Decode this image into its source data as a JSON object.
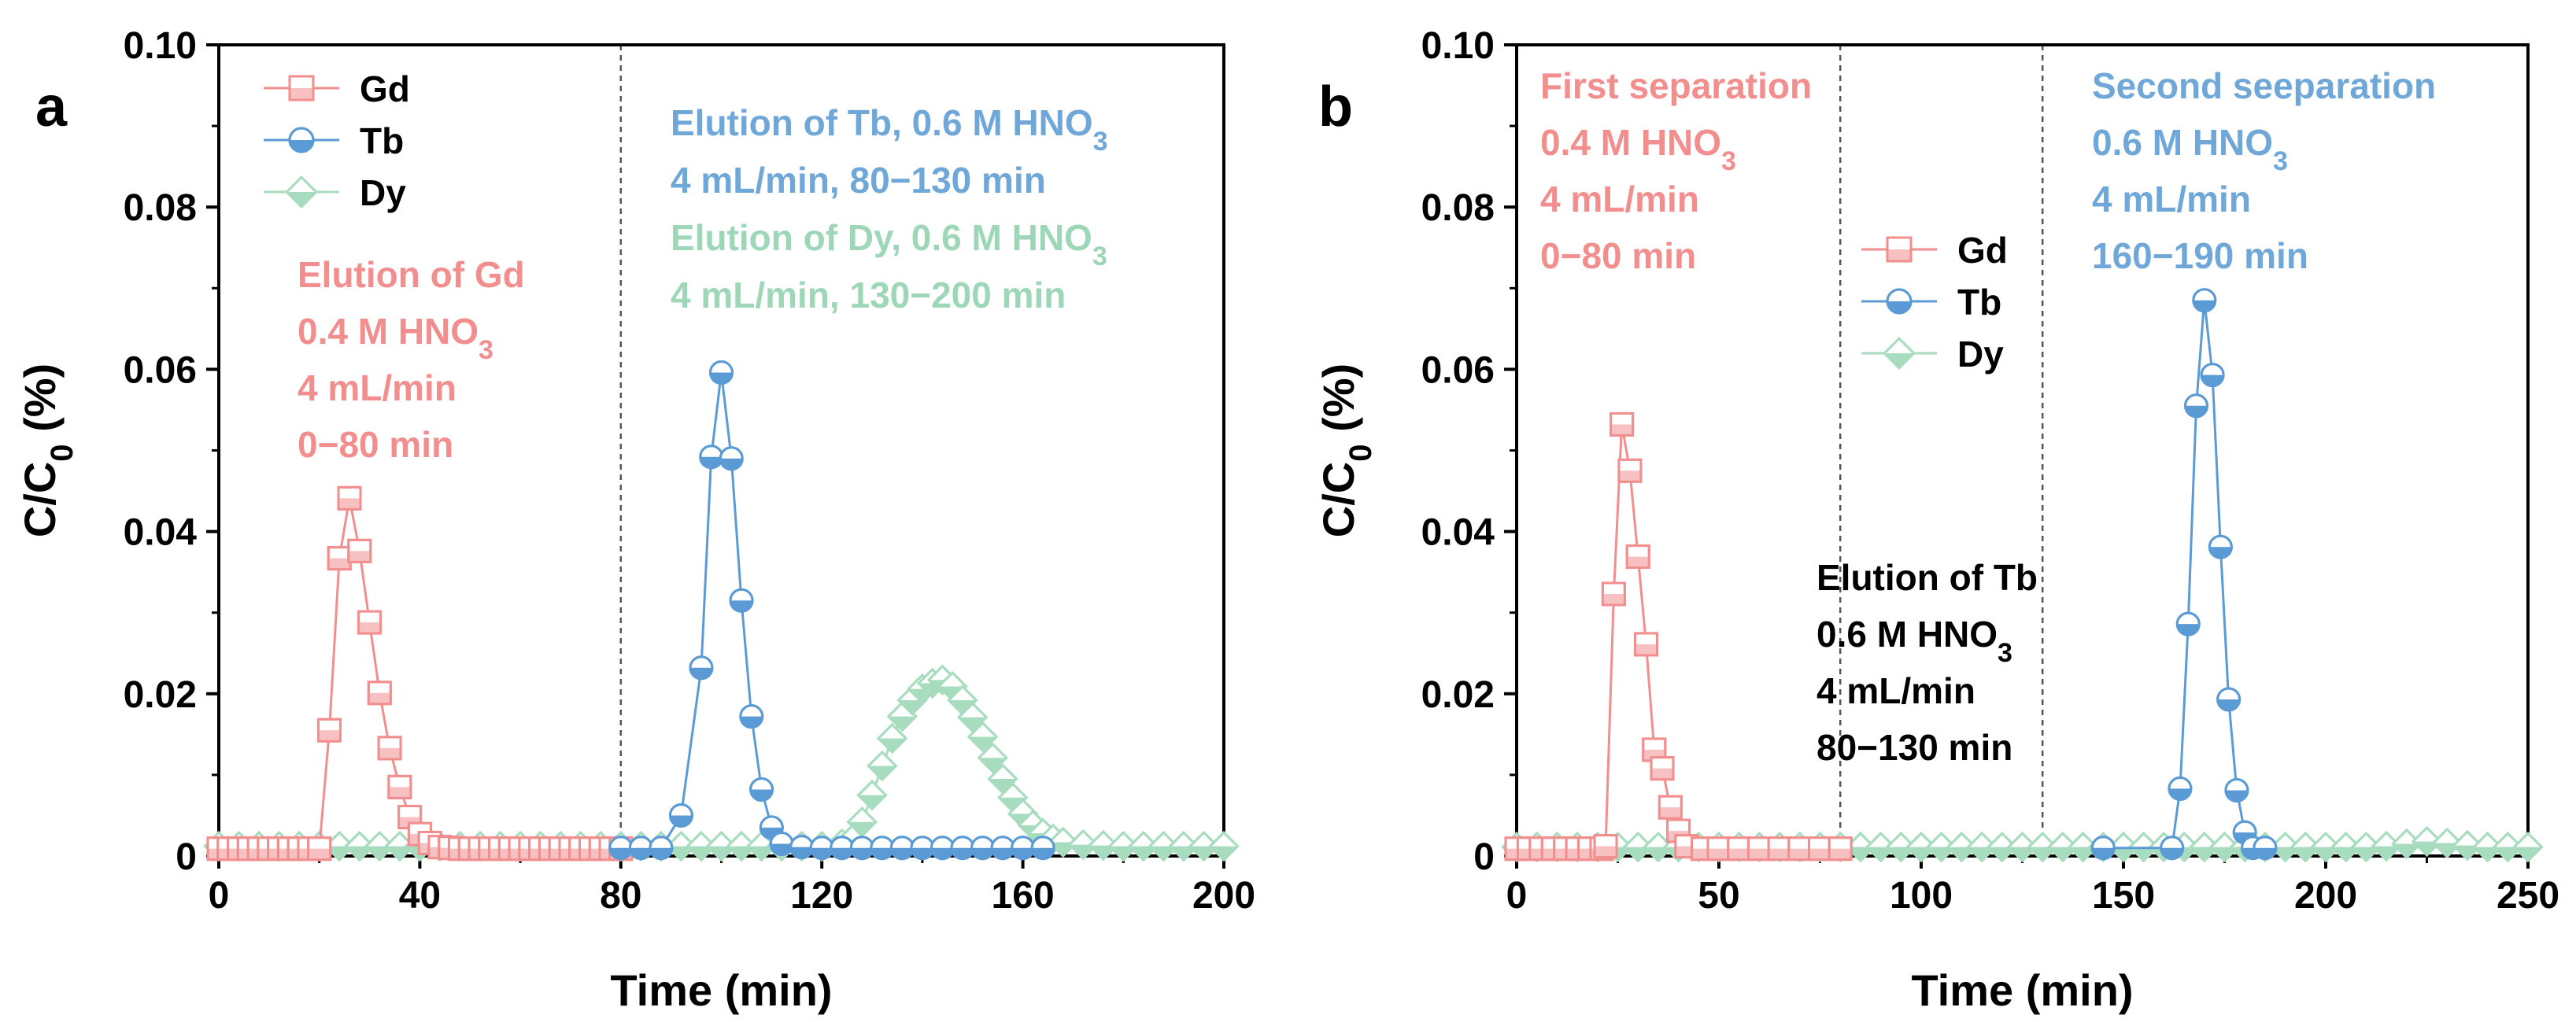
{
  "colors": {
    "Gd": "#f28e8e",
    "Tb": "#5b9bd5",
    "Dy": "#a8dcbf",
    "anno_gd": "#f28e8e",
    "anno_tb": "#6fa8d8",
    "anno_dy": "#9ed6b8",
    "anno_black": "#000000"
  },
  "chart_data": [
    {
      "type": "line",
      "panel": "a",
      "xlabel": "Time (min)",
      "ylabel": {
        "main": "C/C",
        "sub": "0",
        "tail": " (%)"
      },
      "xlim": [
        0,
        200
      ],
      "ylim": [
        0,
        0.1
      ],
      "xticks": [
        "0",
        "40",
        "80",
        "120",
        "160",
        "200"
      ],
      "yticks": [
        "0",
        "0.02",
        "0.04",
        "0.06",
        "0.08",
        "0.10"
      ],
      "vlines": [
        80
      ],
      "legend": {
        "position": "top-left",
        "entries": [
          "Gd",
          "Tb",
          "Dy"
        ]
      },
      "series": [
        {
          "name": "Gd",
          "marker": "square",
          "x": [
            0,
            2,
            4,
            6,
            8,
            10,
            12,
            14,
            16,
            18,
            20,
            22,
            24,
            26,
            28,
            30,
            32,
            34,
            36,
            38,
            40,
            42,
            44,
            46,
            48,
            50,
            52,
            54,
            56,
            58,
            60,
            62,
            64,
            66,
            68,
            70,
            72,
            74,
            76,
            78,
            80
          ],
          "y": [
            0.0009,
            0.0009,
            0.0009,
            0.0009,
            0.0009,
            0.0009,
            0.0009,
            0.0009,
            0.0009,
            0.0009,
            0.0009,
            0.0155,
            0.0367,
            0.0441,
            0.0376,
            0.0288,
            0.0201,
            0.0133,
            0.0085,
            0.0048,
            0.0027,
            0.0016,
            0.0011,
            0.001,
            0.0009,
            0.0009,
            0.0009,
            0.0009,
            0.0009,
            0.0009,
            0.0009,
            0.0009,
            0.0009,
            0.0009,
            0.0009,
            0.0009,
            0.0009,
            0.0009,
            0.0009,
            0.0009,
            0.0009
          ]
        },
        {
          "name": "Tb",
          "marker": "circle",
          "x": [
            80,
            84,
            88,
            92,
            96,
            98,
            100,
            102,
            104,
            106,
            108,
            110,
            112,
            116,
            120,
            124,
            128,
            132,
            136,
            140,
            144,
            148,
            152,
            156,
            160,
            164
          ],
          "y": [
            0.001,
            0.001,
            0.001,
            0.005,
            0.0232,
            0.0492,
            0.0596,
            0.049,
            0.0315,
            0.0172,
            0.0082,
            0.0035,
            0.0015,
            0.0011,
            0.001,
            0.001,
            0.001,
            0.001,
            0.001,
            0.001,
            0.001,
            0.001,
            0.001,
            0.001,
            0.001,
            0.001
          ]
        },
        {
          "name": "Dy",
          "marker": "diamond",
          "x": [
            0,
            4,
            8,
            12,
            16,
            20,
            24,
            28,
            32,
            36,
            40,
            44,
            48,
            52,
            56,
            60,
            64,
            68,
            72,
            76,
            80,
            84,
            88,
            92,
            96,
            100,
            104,
            108,
            112,
            116,
            120,
            124,
            126,
            128,
            130,
            132,
            134,
            136,
            138,
            140,
            142,
            144,
            146,
            148,
            150,
            152,
            154,
            156,
            158,
            160,
            162,
            164,
            166,
            168,
            172,
            176,
            180,
            184,
            188,
            192,
            196,
            200
          ],
          "y": [
            0.0012,
            0.0012,
            0.0012,
            0.0012,
            0.0012,
            0.0012,
            0.0012,
            0.0012,
            0.0012,
            0.0012,
            0.0012,
            0.0012,
            0.0012,
            0.0012,
            0.0012,
            0.0012,
            0.0012,
            0.0012,
            0.0012,
            0.0012,
            0.0012,
            0.0012,
            0.0012,
            0.0012,
            0.0012,
            0.0012,
            0.0012,
            0.0012,
            0.0012,
            0.0012,
            0.0012,
            0.0015,
            0.002,
            0.0042,
            0.0075,
            0.0111,
            0.0145,
            0.0172,
            0.0192,
            0.0206,
            0.0213,
            0.0217,
            0.0209,
            0.0192,
            0.0171,
            0.0147,
            0.0121,
            0.0095,
            0.0072,
            0.0052,
            0.0038,
            0.0028,
            0.0021,
            0.0017,
            0.0014,
            0.0013,
            0.0012,
            0.0012,
            0.0012,
            0.0012,
            0.0012,
            0.0012
          ]
        }
      ],
      "annotations": [
        {
          "color": "anno_gd",
          "lines": [
            [
              {
                "t": "Elution of Gd"
              }
            ],
            [
              {
                "t": "0.4 M HNO"
              },
              {
                "t": "3",
                "sub": true
              }
            ],
            [
              {
                "t": "4 mL/min"
              }
            ],
            [
              {
                "t": "0−80 min"
              }
            ]
          ]
        },
        {
          "color": "anno_tb",
          "lines": [
            [
              {
                "t": "Elution of Tb, 0.6 M HNO"
              },
              {
                "t": "3",
                "sub": true
              }
            ],
            [
              {
                "t": "4 mL/min, 80−130 min"
              }
            ]
          ]
        },
        {
          "color": "anno_dy",
          "lines": [
            [
              {
                "t": "Elution of Dy, 0.6 M HNO"
              },
              {
                "t": "3",
                "sub": true
              }
            ],
            [
              {
                "t": "4 mL/min, 130−200 min"
              }
            ]
          ]
        }
      ]
    },
    {
      "type": "line",
      "panel": "b",
      "xlabel": "Time (min)",
      "ylabel": {
        "main": "C/C",
        "sub": "0",
        "tail": " (%)"
      },
      "xlim": [
        0,
        250
      ],
      "ylim": [
        0,
        0.1
      ],
      "xticks": [
        "0",
        "50",
        "100",
        "150",
        "200",
        "250"
      ],
      "yticks": [
        "0",
        "0.02",
        "0.04",
        "0.06",
        "0.08",
        "0.10"
      ],
      "vlines": [
        80,
        130
      ],
      "legend": {
        "position": "top-center",
        "entries": [
          "Gd",
          "Tb",
          "Dy"
        ]
      },
      "series": [
        {
          "name": "Gd",
          "marker": "square",
          "x": [
            0,
            3,
            6,
            9,
            12,
            15,
            18,
            21,
            22,
            24,
            26,
            28,
            30,
            32,
            34,
            36,
            38,
            40,
            42,
            46,
            50,
            55,
            60,
            65,
            70,
            75,
            80
          ],
          "y": [
            0.0009,
            0.0009,
            0.0009,
            0.0009,
            0.0009,
            0.0009,
            0.0009,
            0.0009,
            0.0012,
            0.0323,
            0.0532,
            0.0475,
            0.0369,
            0.0261,
            0.0131,
            0.0108,
            0.006,
            0.0031,
            0.0012,
            0.0009,
            0.0009,
            0.0009,
            0.0009,
            0.0009,
            0.0009,
            0.0009,
            0.0009
          ]
        },
        {
          "name": "Tb",
          "marker": "circle",
          "x": [
            145,
            162,
            164,
            166,
            168,
            170,
            172,
            174,
            176,
            178,
            180,
            182,
            185
          ],
          "y": [
            0.001,
            0.001,
            0.0083,
            0.0286,
            0.0555,
            0.0685,
            0.0593,
            0.0381,
            0.0193,
            0.0081,
            0.0029,
            0.001,
            0.001
          ]
        },
        {
          "name": "Dy",
          "marker": "diamond",
          "x": [
            0,
            5,
            10,
            15,
            20,
            25,
            30,
            35,
            40,
            45,
            50,
            55,
            60,
            65,
            70,
            75,
            80,
            85,
            90,
            95,
            100,
            105,
            110,
            115,
            120,
            125,
            130,
            135,
            140,
            145,
            150,
            155,
            160,
            165,
            170,
            175,
            180,
            185,
            190,
            195,
            200,
            205,
            210,
            215,
            220,
            225,
            230,
            235,
            240,
            245,
            250
          ],
          "y": [
            0.0011,
            0.0011,
            0.0011,
            0.0011,
            0.0011,
            0.0011,
            0.0011,
            0.0011,
            0.0011,
            0.0011,
            0.0011,
            0.0011,
            0.0011,
            0.0011,
            0.0011,
            0.0011,
            0.0011,
            0.0011,
            0.0011,
            0.0011,
            0.0011,
            0.0011,
            0.0011,
            0.0011,
            0.0011,
            0.0011,
            0.0011,
            0.0011,
            0.0011,
            0.0011,
            0.0011,
            0.0011,
            0.0011,
            0.0011,
            0.0011,
            0.0011,
            0.0011,
            0.0011,
            0.0011,
            0.0011,
            0.0011,
            0.0011,
            0.0011,
            0.0012,
            0.0015,
            0.0018,
            0.0016,
            0.0013,
            0.0011,
            0.0011,
            0.0011
          ]
        }
      ],
      "annotations": [
        {
          "color": "anno_gd",
          "lines": [
            [
              {
                "t": "First separation"
              }
            ],
            [
              {
                "t": "0.4 M HNO"
              },
              {
                "t": "3",
                "sub": true
              }
            ],
            [
              {
                "t": "4 mL/min"
              }
            ],
            [
              {
                "t": "0−80 min"
              }
            ]
          ]
        },
        {
          "color": "anno_tb",
          "lines": [
            [
              {
                "t": "Second seeparation"
              }
            ],
            [
              {
                "t": "0.6 M  HNO"
              },
              {
                "t": "3",
                "sub": true
              }
            ],
            [
              {
                "t": "4 mL/min"
              }
            ],
            [
              {
                "t": "160−190 min"
              }
            ]
          ]
        },
        {
          "color": "anno_black",
          "lines": [
            [
              {
                "t": "Elution of Tb"
              }
            ],
            [
              {
                "t": "0.6 M HNO"
              },
              {
                "t": "3",
                "sub": true
              }
            ],
            [
              {
                "t": "4 mL/min"
              }
            ],
            [
              {
                "t": "80−130 min"
              }
            ]
          ]
        }
      ]
    }
  ]
}
